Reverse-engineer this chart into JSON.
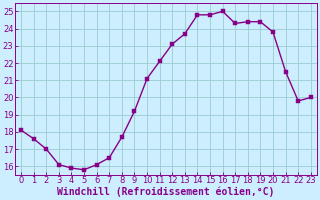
{
  "x": [
    0,
    1,
    2,
    3,
    4,
    5,
    6,
    7,
    8,
    9,
    10,
    11,
    12,
    13,
    14,
    15,
    16,
    17,
    18,
    19,
    20,
    21,
    22,
    23
  ],
  "y": [
    18.1,
    17.6,
    17.0,
    16.1,
    15.9,
    15.8,
    16.1,
    16.5,
    17.7,
    19.2,
    21.1,
    22.1,
    23.1,
    23.7,
    24.8,
    24.8,
    25.0,
    24.3,
    24.4,
    24.4,
    23.8,
    21.5,
    19.8,
    20.0
  ],
  "line_color": "#880088",
  "marker_color": "#880088",
  "bg_color": "#cceeff",
  "grid_color": "#99cccc",
  "xlabel": "Windchill (Refroidissement éolien,°C)",
  "xlim": [
    -0.5,
    23.5
  ],
  "ylim": [
    15.5,
    25.5
  ],
  "yticks": [
    16,
    17,
    18,
    19,
    20,
    21,
    22,
    23,
    24,
    25
  ],
  "xticks": [
    0,
    1,
    2,
    3,
    4,
    5,
    6,
    7,
    8,
    9,
    10,
    11,
    12,
    13,
    14,
    15,
    16,
    17,
    18,
    19,
    20,
    21,
    22,
    23
  ],
  "tick_color": "#880088",
  "tick_fontsize": 6,
  "xlabel_fontsize": 7,
  "line_width": 1.0,
  "marker_size": 2.5,
  "marker": "s"
}
